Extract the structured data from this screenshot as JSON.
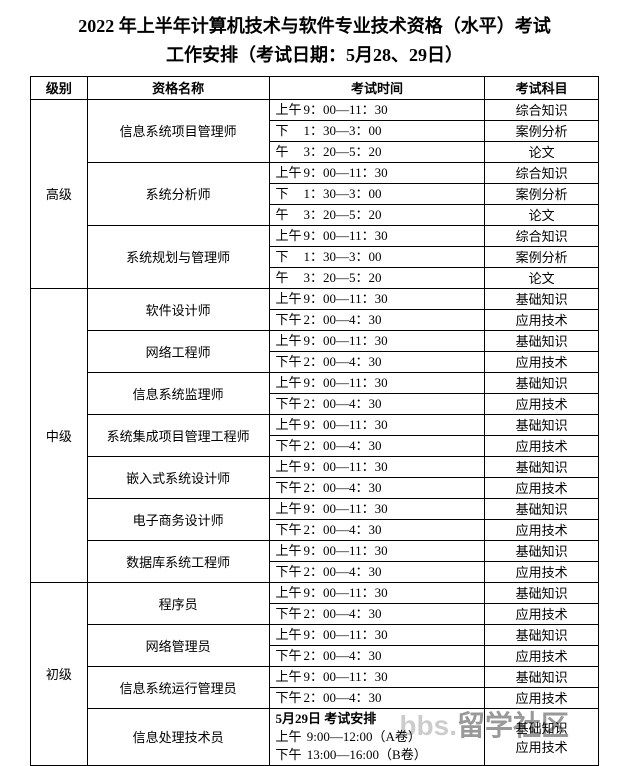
{
  "title_line1": "2022 年上半年计算机技术与软件专业技术资格（水平）考试",
  "title_line2": "工作安排（考试日期：5月28、29日）",
  "headers": {
    "level": "级别",
    "name": "资格名称",
    "time": "考试时间",
    "subject": "考试科目"
  },
  "colors": {
    "border": "#000000",
    "text": "#000000",
    "bg": "#ffffff"
  },
  "fonts": {
    "title_pt": 18,
    "cell_pt": 13
  },
  "levels": [
    {
      "label": "高级",
      "items": [
        {
          "name": "信息系统项目管理师",
          "sessions": [
            {
              "period": "上午",
              "range": "9：00—11：30",
              "subject": "综合知识"
            },
            {
              "period": "下",
              "range": "1：30—3：00",
              "subject": "案例分析"
            },
            {
              "period": "午",
              "range": "3：20—5：20",
              "subject": "论文"
            }
          ]
        },
        {
          "name": "系统分析师",
          "sessions": [
            {
              "period": "上午",
              "range": "9：00—11：30",
              "subject": "综合知识"
            },
            {
              "period": "下",
              "range": "1：30—3：00",
              "subject": "案例分析"
            },
            {
              "period": "午",
              "range": "3：20—5：20",
              "subject": "论文"
            }
          ]
        },
        {
          "name": "系统规划与管理师",
          "sessions": [
            {
              "period": "上午",
              "range": "9：00—11：30",
              "subject": "综合知识"
            },
            {
              "period": "下",
              "range": "1：30—3：00",
              "subject": "案例分析"
            },
            {
              "period": "午",
              "range": "3：20—5：20",
              "subject": "论文"
            }
          ]
        }
      ]
    },
    {
      "label": "中级",
      "items": [
        {
          "name": "软件设计师",
          "sessions": [
            {
              "period": "上午",
              "range": "9：00—11：30",
              "subject": "基础知识"
            },
            {
              "period": "下午",
              "range": "2：00—4：30",
              "subject": "应用技术"
            }
          ]
        },
        {
          "name": "网络工程师",
          "sessions": [
            {
              "period": "上午",
              "range": "9：00—11：30",
              "subject": "基础知识"
            },
            {
              "period": "下午",
              "range": "2：00—4：30",
              "subject": "应用技术"
            }
          ]
        },
        {
          "name": "信息系统监理师",
          "sessions": [
            {
              "period": "上午",
              "range": "9：00—11：30",
              "subject": "基础知识"
            },
            {
              "period": "下午",
              "range": "2：00—4：30",
              "subject": "应用技术"
            }
          ]
        },
        {
          "name": "系统集成项目管理工程师",
          "sessions": [
            {
              "period": "上午",
              "range": "9：00—11：30",
              "subject": "基础知识"
            },
            {
              "period": "下午",
              "range": "2：00—4：30",
              "subject": "应用技术"
            }
          ]
        },
        {
          "name": "嵌入式系统设计师",
          "sessions": [
            {
              "period": "上午",
              "range": "9：00—11：30",
              "subject": "基础知识"
            },
            {
              "period": "下午",
              "range": "2：00—4：30",
              "subject": "应用技术"
            }
          ]
        },
        {
          "name": "电子商务设计师",
          "sessions": [
            {
              "period": "上午",
              "range": "9：00—11：30",
              "subject": "基础知识"
            },
            {
              "period": "下午",
              "range": "2：00—4：30",
              "subject": "应用技术"
            }
          ]
        },
        {
          "name": "数据库系统工程师",
          "sessions": [
            {
              "period": "上午",
              "range": "9：00—11：30",
              "subject": "基础知识"
            },
            {
              "period": "下午",
              "range": "2：00—4：30",
              "subject": "应用技术"
            }
          ]
        }
      ]
    },
    {
      "label": "初级",
      "items": [
        {
          "name": "程序员",
          "sessions": [
            {
              "period": "上午",
              "range": "9：00—11：30",
              "subject": "基础知识"
            },
            {
              "period": "下午",
              "range": "2：00—4：30",
              "subject": "应用技术"
            }
          ]
        },
        {
          "name": "网络管理员",
          "sessions": [
            {
              "period": "上午",
              "range": "9：00—11：30",
              "subject": "基础知识"
            },
            {
              "period": "下午",
              "range": "2：00—4：30",
              "subject": "应用技术"
            }
          ]
        },
        {
          "name": "信息系统运行管理员",
          "sessions": [
            {
              "period": "上午",
              "range": "9：00—11：30",
              "subject": "基础知识"
            },
            {
              "period": "下午",
              "range": "2：00—4：30",
              "subject": "应用技术"
            }
          ]
        },
        {
          "name": "信息处理技术员",
          "special": {
            "title": "5月29日 考试安排",
            "lines": [
              {
                "period": "上午",
                "range": "9:00—12:00（A卷）"
              },
              {
                "period": "下午",
                "range": "13:00—16:00（B卷）"
              }
            ],
            "subjects": [
              "基础知识",
              "应用技术"
            ]
          }
        }
      ]
    }
  ],
  "watermark": {
    "text_light": "bbs.",
    "text_dark": "留学社区"
  }
}
